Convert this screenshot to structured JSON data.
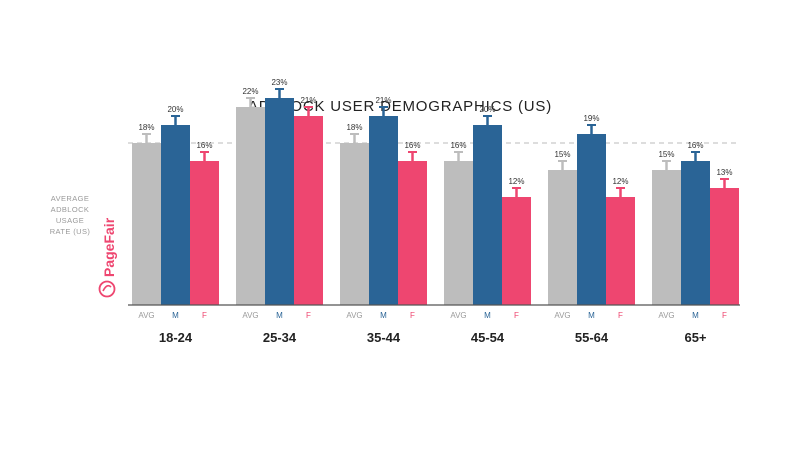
{
  "chart_data": {
    "type": "bar",
    "title": "ADBLOCK USER DEMOGRAPHICS (US)",
    "categories": [
      "18-24",
      "25-34",
      "35-44",
      "45-54",
      "55-64",
      "65+"
    ],
    "series": [
      {
        "name": "AVG",
        "color": "#bdbdbd",
        "values": [
          18,
          22,
          18,
          16,
          15,
          15
        ],
        "labels": [
          "18%",
          "22%",
          "18%",
          "16%",
          "15%",
          "15%"
        ]
      },
      {
        "name": "M",
        "color": "#2a6496",
        "values": [
          20,
          23,
          21,
          20,
          19,
          16
        ],
        "labels": [
          "20%",
          "23%",
          "21%",
          "20%",
          "19%",
          "16%"
        ]
      },
      {
        "name": "F",
        "color": "#ee4670",
        "values": [
          16,
          21,
          16,
          12,
          12,
          13
        ],
        "labels": [
          "16%",
          "21%",
          "16%",
          "12%",
          "12%",
          "13%"
        ]
      }
    ],
    "reference_line": {
      "value": 18,
      "label_lines": [
        "AVERAGE",
        "ADBLOCK",
        "USAGE",
        "RATE (US)"
      ]
    },
    "ylim": [
      0,
      25
    ],
    "grid": false,
    "error_bars": true
  },
  "logo": {
    "text": "PageFair",
    "color": "#ee4670"
  },
  "colors": {
    "avg": "#bdbdbd",
    "male": "#2a6496",
    "female": "#ee4670",
    "reference": "#bbbbbb",
    "axis": "#555555"
  }
}
